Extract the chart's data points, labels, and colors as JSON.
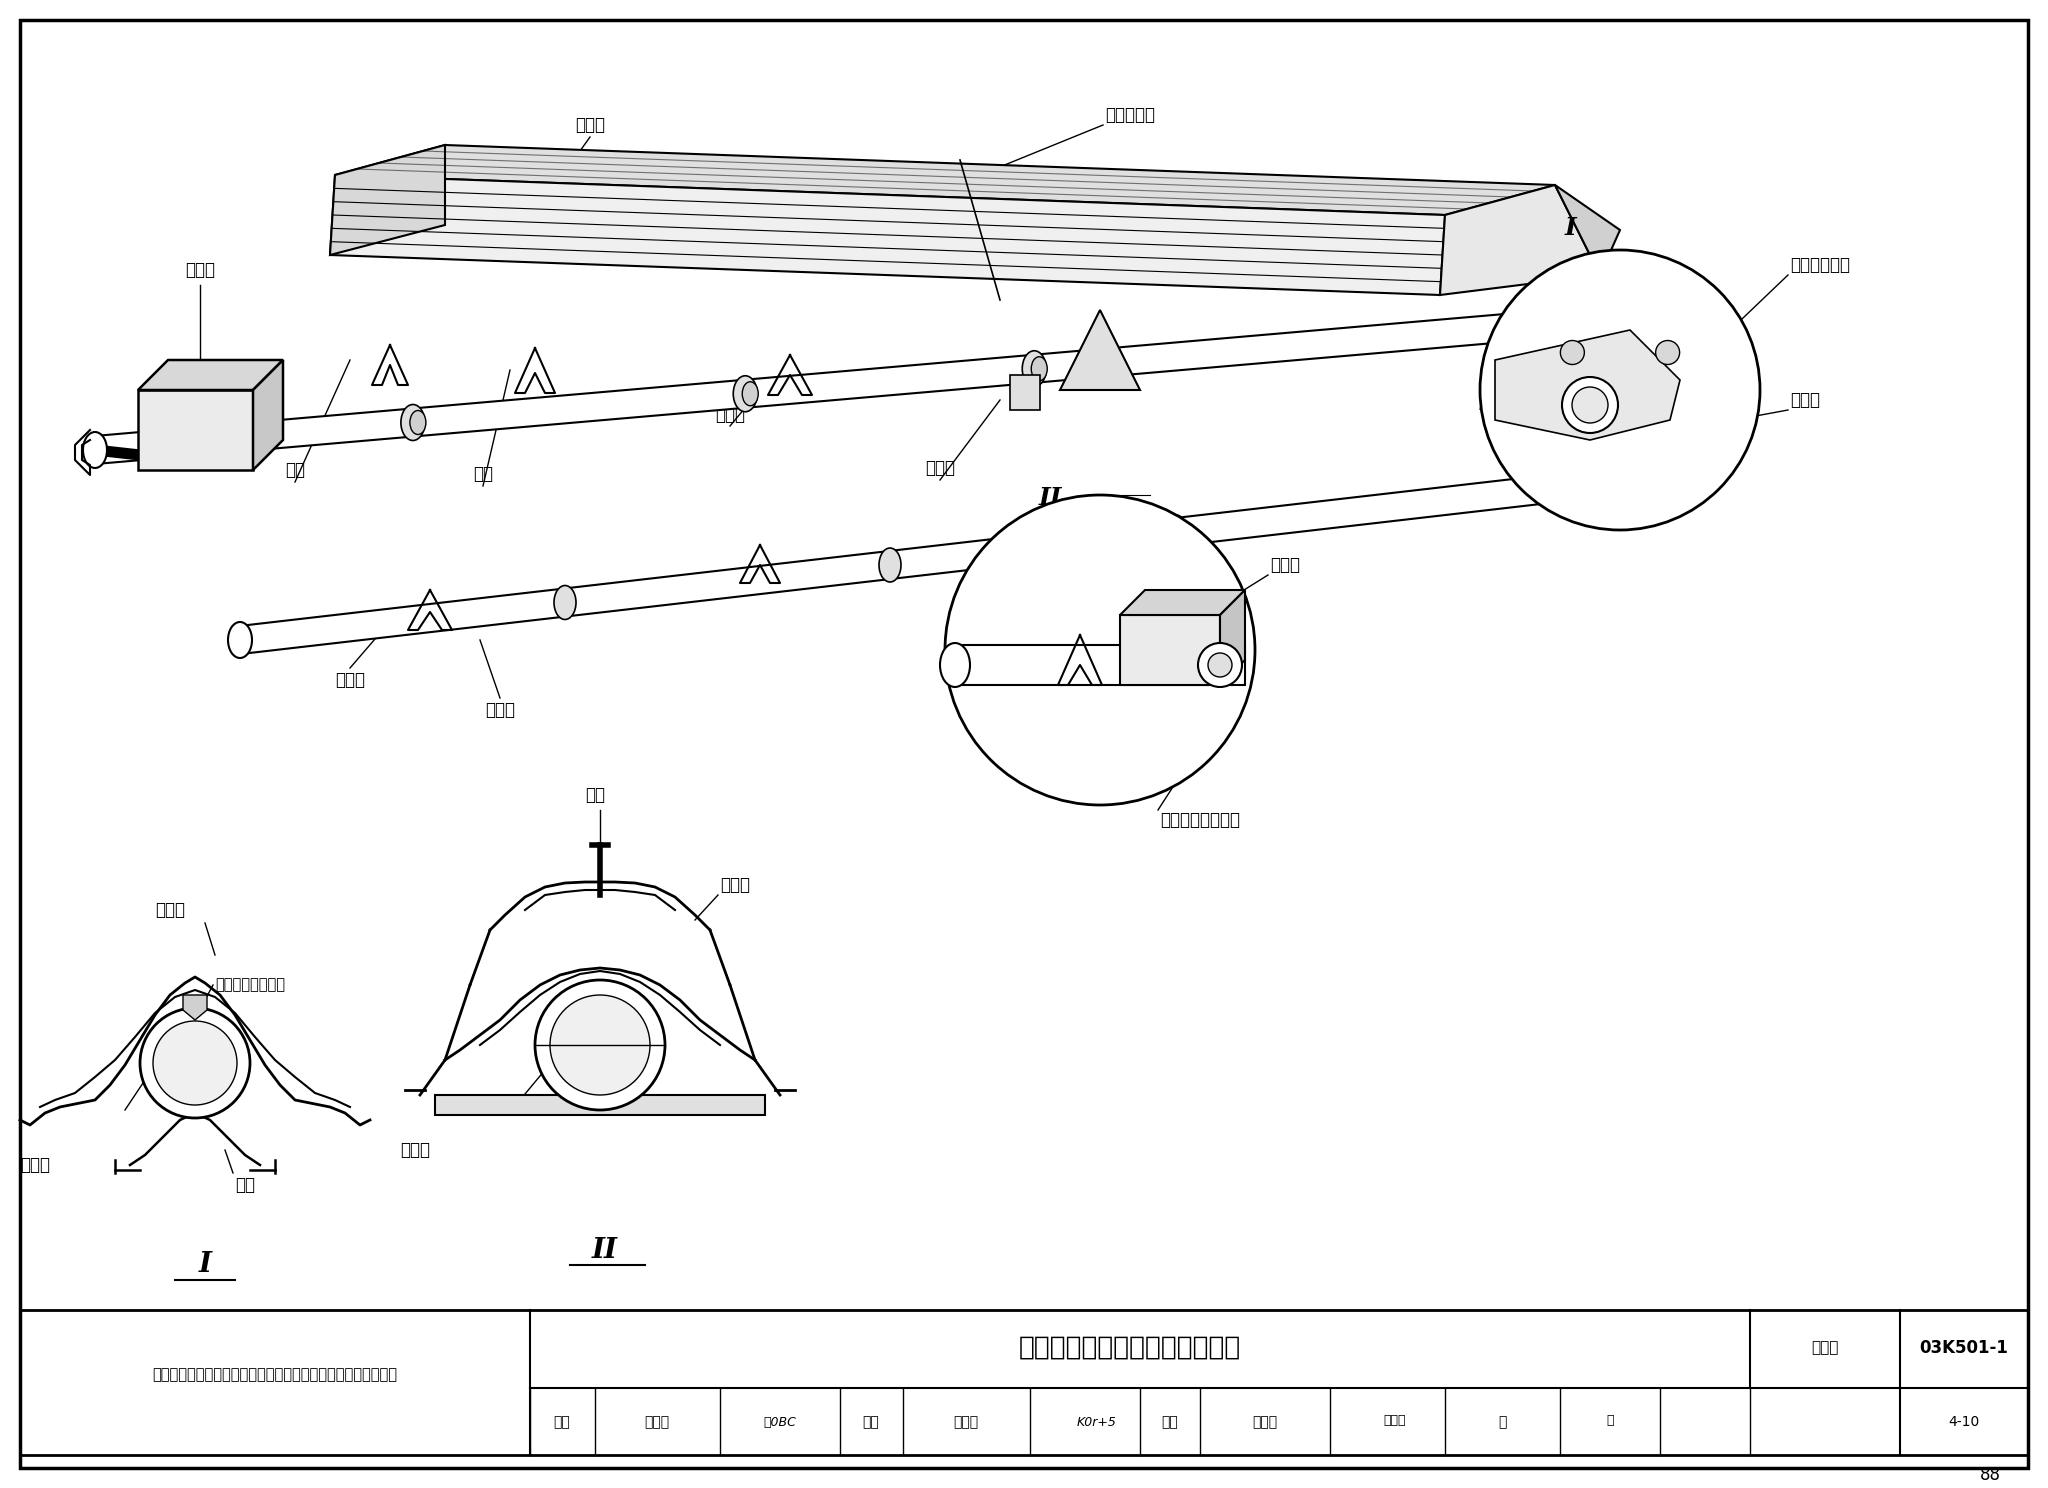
{
  "page_width": 20.48,
  "page_height": 14.88,
  "bg_color": "#ffffff",
  "border_color": "#000000",
  "title_main": "燃气辐射供暖系统装配图（三）",
  "title_collection": "图集号",
  "title_collection_num": "03K501-1",
  "note_text": "注：本图根据青岛森普热能有限公司青岛办事处提供资料编制。",
  "page_num": "88",
  "label_fansheban": "反射板",
  "label_fansheban_dajie": "反射板搭接",
  "label_fansheban_mojiduan": "反射板末端盖",
  "label_diaojia": "吐架",
  "label_tuojia": "托架",
  "label_jinjingsi": "紧螺丝",
  "label_shuanjingsi": "松螺丝",
  "label_fasheqi": "发生器",
  "label_guanjietou": "管接头",
  "label_fusheguan": "辐射管",
  "label_fusheguan_tongfengshan": "辐射管末端通风扇",
  "label_yong_liujiao": "用六角头螺栓上紧",
  "label_I": "I",
  "label_II": "II"
}
